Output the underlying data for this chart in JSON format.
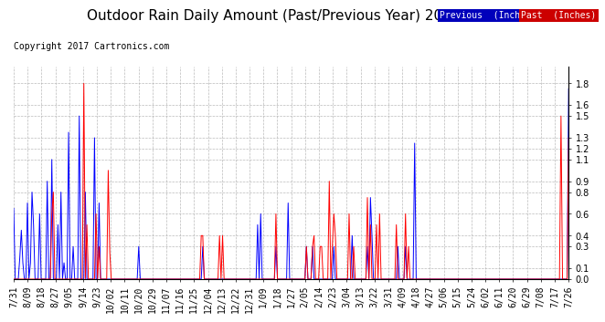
{
  "title": "Outdoor Rain Daily Amount (Past/Previous Year) 20170731",
  "copyright": "Copyright 2017 Cartronics.com",
  "legend_labels": [
    "Previous  (Inches)",
    "Past  (Inches)"
  ],
  "legend_bg_colors": [
    "#0000bb",
    "#cc0000"
  ],
  "yticks": [
    0.0,
    0.1,
    0.3,
    0.4,
    0.6,
    0.8,
    0.9,
    1.1,
    1.2,
    1.3,
    1.5,
    1.6,
    1.8
  ],
  "ylim": [
    0.0,
    1.95
  ],
  "xtick_labels": [
    "7/31",
    "8/09",
    "8/18",
    "8/27",
    "9/05",
    "9/14",
    "9/23",
    "10/02",
    "10/11",
    "10/20",
    "10/29",
    "11/07",
    "11/16",
    "11/25",
    "12/04",
    "12/13",
    "12/22",
    "12/31",
    "1/09",
    "1/18",
    "1/27",
    "2/05",
    "2/14",
    "2/23",
    "3/04",
    "3/13",
    "3/22",
    "3/31",
    "4/09",
    "4/18",
    "4/27",
    "5/06",
    "5/15",
    "5/24",
    "6/02",
    "6/11",
    "6/20",
    "6/29",
    "7/08",
    "7/17",
    "7/26"
  ],
  "bg_color": "#ffffff",
  "grid_color": "#aaaaaa",
  "line_color_prev": "#0000ff",
  "line_color_past": "#ff0000",
  "title_fontsize": 11,
  "copyright_fontsize": 7,
  "tick_fontsize": 7,
  "prev_rain": [
    0.65,
    0.0,
    0.0,
    0.0,
    0.2,
    0.45,
    0.15,
    0.0,
    0.0,
    0.7,
    0.0,
    0.15,
    0.8,
    0.5,
    0.0,
    0.0,
    0.0,
    0.6,
    0.0,
    0.0,
    0.0,
    0.0,
    0.9,
    0.0,
    0.0,
    1.1,
    0.0,
    0.0,
    0.0,
    0.5,
    0.0,
    0.8,
    0.0,
    0.15,
    0.0,
    0.0,
    1.35,
    0.0,
    0.0,
    0.3,
    0.0,
    0.0,
    0.0,
    1.5,
    0.0,
    0.0,
    0.0,
    0.8,
    0.0,
    0.0,
    0.0,
    0.0,
    0.0,
    1.3,
    0.0,
    0.0,
    0.7,
    0.0,
    0.0,
    0.0,
    0.0,
    0.0,
    0.0,
    0.0,
    0.0,
    0.0,
    0.0,
    0.0,
    0.0,
    0.0,
    0.0,
    0.0,
    0.0,
    0.0,
    0.0,
    0.0,
    0.0,
    0.0,
    0.0,
    0.0,
    0.0,
    0.0,
    0.3,
    0.0,
    0.0,
    0.0,
    0.0,
    0.0,
    0.0,
    0.0,
    0.0,
    0.0,
    0.0,
    0.0,
    0.0,
    0.0,
    0.0,
    0.0,
    0.0,
    0.0,
    0.0,
    0.0,
    0.0,
    0.0,
    0.0,
    0.0,
    0.0,
    0.0,
    0.0,
    0.0,
    0.0,
    0.0,
    0.0,
    0.0,
    0.0,
    0.0,
    0.0,
    0.0,
    0.0,
    0.0,
    0.0,
    0.0,
    0.0,
    0.0,
    0.3,
    0.0,
    0.0,
    0.0,
    0.0,
    0.0,
    0.0,
    0.0,
    0.0,
    0.0,
    0.0,
    0.0,
    0.0,
    0.0,
    0.0,
    0.0,
    0.0,
    0.0,
    0.0,
    0.0,
    0.0,
    0.0,
    0.0,
    0.0,
    0.0,
    0.0,
    0.0,
    0.0,
    0.0,
    0.0,
    0.0,
    0.0,
    0.0,
    0.0,
    0.0,
    0.0,
    0.5,
    0.0,
    0.6,
    0.0,
    0.0,
    0.0,
    0.0,
    0.0,
    0.0,
    0.0,
    0.0,
    0.0,
    0.3,
    0.0,
    0.0,
    0.0,
    0.0,
    0.0,
    0.0,
    0.0,
    0.7,
    0.0,
    0.0,
    0.0,
    0.0,
    0.0,
    0.0,
    0.0,
    0.0,
    0.0,
    0.0,
    0.0,
    0.3,
    0.0,
    0.0,
    0.0,
    0.3,
    0.0,
    0.0,
    0.0,
    0.0,
    0.0,
    0.0,
    0.0,
    0.0,
    0.0,
    0.0,
    0.0,
    0.0,
    0.0,
    0.3,
    0.0,
    0.0,
    0.0,
    0.0,
    0.0,
    0.0,
    0.0,
    0.0,
    0.0,
    0.0,
    0.0,
    0.4,
    0.0,
    0.0,
    0.0,
    0.0,
    0.0,
    0.0,
    0.0,
    0.0,
    0.0,
    0.3,
    0.0,
    0.75,
    0.4,
    0.0,
    0.0,
    0.0,
    0.0,
    0.0,
    0.0,
    0.0,
    0.0,
    0.0,
    0.0,
    0.0,
    0.0,
    0.0,
    0.0,
    0.0,
    0.0,
    0.3,
    0.0,
    0.0,
    0.0,
    0.0,
    0.3,
    0.0,
    0.0,
    0.0,
    0.0,
    0.0,
    1.25,
    0.0,
    0.0,
    0.0,
    0.0,
    0.0,
    0.0,
    0.0,
    0.0,
    0.0,
    0.0,
    0.0,
    0.0,
    0.0,
    0.0,
    0.0,
    0.0,
    0.0,
    0.0,
    0.0,
    0.0,
    0.0,
    0.0,
    0.0,
    0.0,
    0.0,
    0.0,
    0.0,
    0.0,
    0.0,
    0.0,
    0.0,
    0.0,
    0.0,
    0.0,
    0.0,
    0.0,
    0.0,
    0.0,
    0.0,
    0.0,
    0.0,
    0.0,
    0.0,
    0.0,
    0.0,
    0.0,
    0.0,
    0.0,
    0.0,
    0.0,
    0.0,
    0.0,
    0.0,
    0.0,
    0.0,
    0.0,
    0.0,
    0.0,
    0.0,
    0.0,
    0.0,
    0.0,
    0.0,
    0.0,
    0.0,
    0.0,
    0.0,
    0.0,
    0.0,
    0.0,
    0.0,
    0.0,
    0.0,
    0.0,
    0.0,
    0.0,
    0.0,
    0.0,
    0.0,
    0.0,
    0.0,
    0.0,
    0.0,
    0.0,
    0.0,
    0.0,
    0.0,
    0.0,
    0.0,
    0.0,
    0.0,
    0.0,
    0.0,
    0.0,
    0.0,
    0.0,
    0.0,
    0.0,
    0.0,
    0.0,
    1.75
  ],
  "past_rain": [
    0.0,
    0.0,
    0.0,
    0.0,
    0.0,
    0.0,
    0.0,
    0.0,
    0.0,
    0.0,
    0.0,
    0.0,
    0.0,
    0.0,
    0.0,
    0.0,
    0.0,
    0.0,
    0.0,
    0.0,
    0.0,
    0.0,
    0.0,
    0.0,
    0.0,
    0.6,
    0.8,
    0.0,
    0.0,
    0.0,
    0.0,
    0.0,
    0.0,
    0.0,
    0.0,
    0.0,
    0.0,
    0.0,
    0.0,
    0.0,
    0.0,
    0.0,
    0.0,
    0.0,
    0.0,
    0.0,
    1.8,
    0.0,
    0.5,
    0.0,
    0.0,
    0.0,
    0.0,
    0.0,
    0.6,
    0.0,
    0.3,
    0.0,
    0.0,
    0.0,
    0.0,
    0.0,
    1.0,
    0.25,
    0.0,
    0.0,
    0.0,
    0.0,
    0.0,
    0.0,
    0.0,
    0.0,
    0.0,
    0.0,
    0.0,
    0.0,
    0.0,
    0.0,
    0.0,
    0.0,
    0.0,
    0.0,
    0.0,
    0.0,
    0.0,
    0.0,
    0.0,
    0.0,
    0.0,
    0.0,
    0.0,
    0.0,
    0.0,
    0.0,
    0.0,
    0.0,
    0.0,
    0.0,
    0.0,
    0.0,
    0.0,
    0.0,
    0.0,
    0.0,
    0.0,
    0.0,
    0.0,
    0.0,
    0.0,
    0.0,
    0.0,
    0.0,
    0.0,
    0.0,
    0.0,
    0.0,
    0.0,
    0.0,
    0.0,
    0.0,
    0.0,
    0.0,
    0.0,
    0.4,
    0.4,
    0.0,
    0.0,
    0.0,
    0.0,
    0.0,
    0.0,
    0.0,
    0.0,
    0.0,
    0.0,
    0.4,
    0.0,
    0.4,
    0.0,
    0.0,
    0.0,
    0.0,
    0.0,
    0.0,
    0.0,
    0.0,
    0.0,
    0.0,
    0.0,
    0.0,
    0.0,
    0.0,
    0.0,
    0.0,
    0.0,
    0.0,
    0.0,
    0.0,
    0.0,
    0.0,
    0.0,
    0.0,
    0.0,
    0.0,
    0.0,
    0.0,
    0.0,
    0.0,
    0.0,
    0.0,
    0.0,
    0.0,
    0.6,
    0.0,
    0.0,
    0.0,
    0.0,
    0.0,
    0.0,
    0.0,
    0.0,
    0.0,
    0.0,
    0.0,
    0.0,
    0.0,
    0.0,
    0.0,
    0.0,
    0.0,
    0.0,
    0.0,
    0.3,
    0.0,
    0.0,
    0.0,
    0.3,
    0.4,
    0.0,
    0.0,
    0.0,
    0.3,
    0.3,
    0.0,
    0.0,
    0.0,
    0.0,
    0.9,
    0.0,
    0.3,
    0.6,
    0.4,
    0.0,
    0.0,
    0.0,
    0.0,
    0.0,
    0.0,
    0.0,
    0.0,
    0.6,
    0.0,
    0.0,
    0.3,
    0.0,
    0.0,
    0.0,
    0.0,
    0.0,
    0.0,
    0.0,
    0.0,
    0.75,
    0.0,
    0.5,
    0.0,
    0.0,
    0.0,
    0.5,
    0.0,
    0.6,
    0.0,
    0.0,
    0.0,
    0.0,
    0.0,
    0.0,
    0.0,
    0.0,
    0.0,
    0.0,
    0.5,
    0.0,
    0.0,
    0.0,
    0.0,
    0.0,
    0.6,
    0.0,
    0.3,
    0.0,
    0.0,
    0.0,
    0.0,
    0.0,
    0.0,
    0.0,
    0.0,
    0.0,
    0.0,
    0.0,
    0.0,
    0.0,
    0.0,
    0.0,
    0.0,
    0.0,
    0.0,
    0.0,
    0.0,
    0.0,
    0.0,
    0.0,
    0.0,
    0.0,
    0.0,
    0.0,
    0.0,
    0.0,
    0.0,
    0.0,
    0.0,
    0.0,
    0.0,
    0.0,
    0.0,
    0.0,
    0.0,
    0.0,
    0.0,
    0.0,
    0.0,
    0.0,
    0.0,
    0.0,
    0.0,
    0.0,
    0.0,
    0.0,
    0.0,
    0.0,
    0.0,
    0.0,
    0.0,
    0.0,
    0.0,
    0.0,
    0.0,
    0.0,
    0.0,
    0.0,
    0.0,
    0.0,
    0.0,
    0.0,
    0.0,
    0.0,
    0.0,
    0.0,
    0.0,
    0.0,
    0.0,
    0.0,
    0.0,
    0.0,
    0.0,
    0.0,
    0.0,
    0.0,
    0.0,
    0.0,
    0.0,
    0.0,
    0.0,
    0.0,
    0.0,
    0.0,
    0.0,
    0.0,
    0.0,
    0.0,
    0.0,
    0.0,
    0.0,
    0.0,
    0.0,
    0.0,
    0.0,
    0.0,
    1.5,
    0.0,
    0.0,
    0.0,
    0.0,
    1.3
  ]
}
